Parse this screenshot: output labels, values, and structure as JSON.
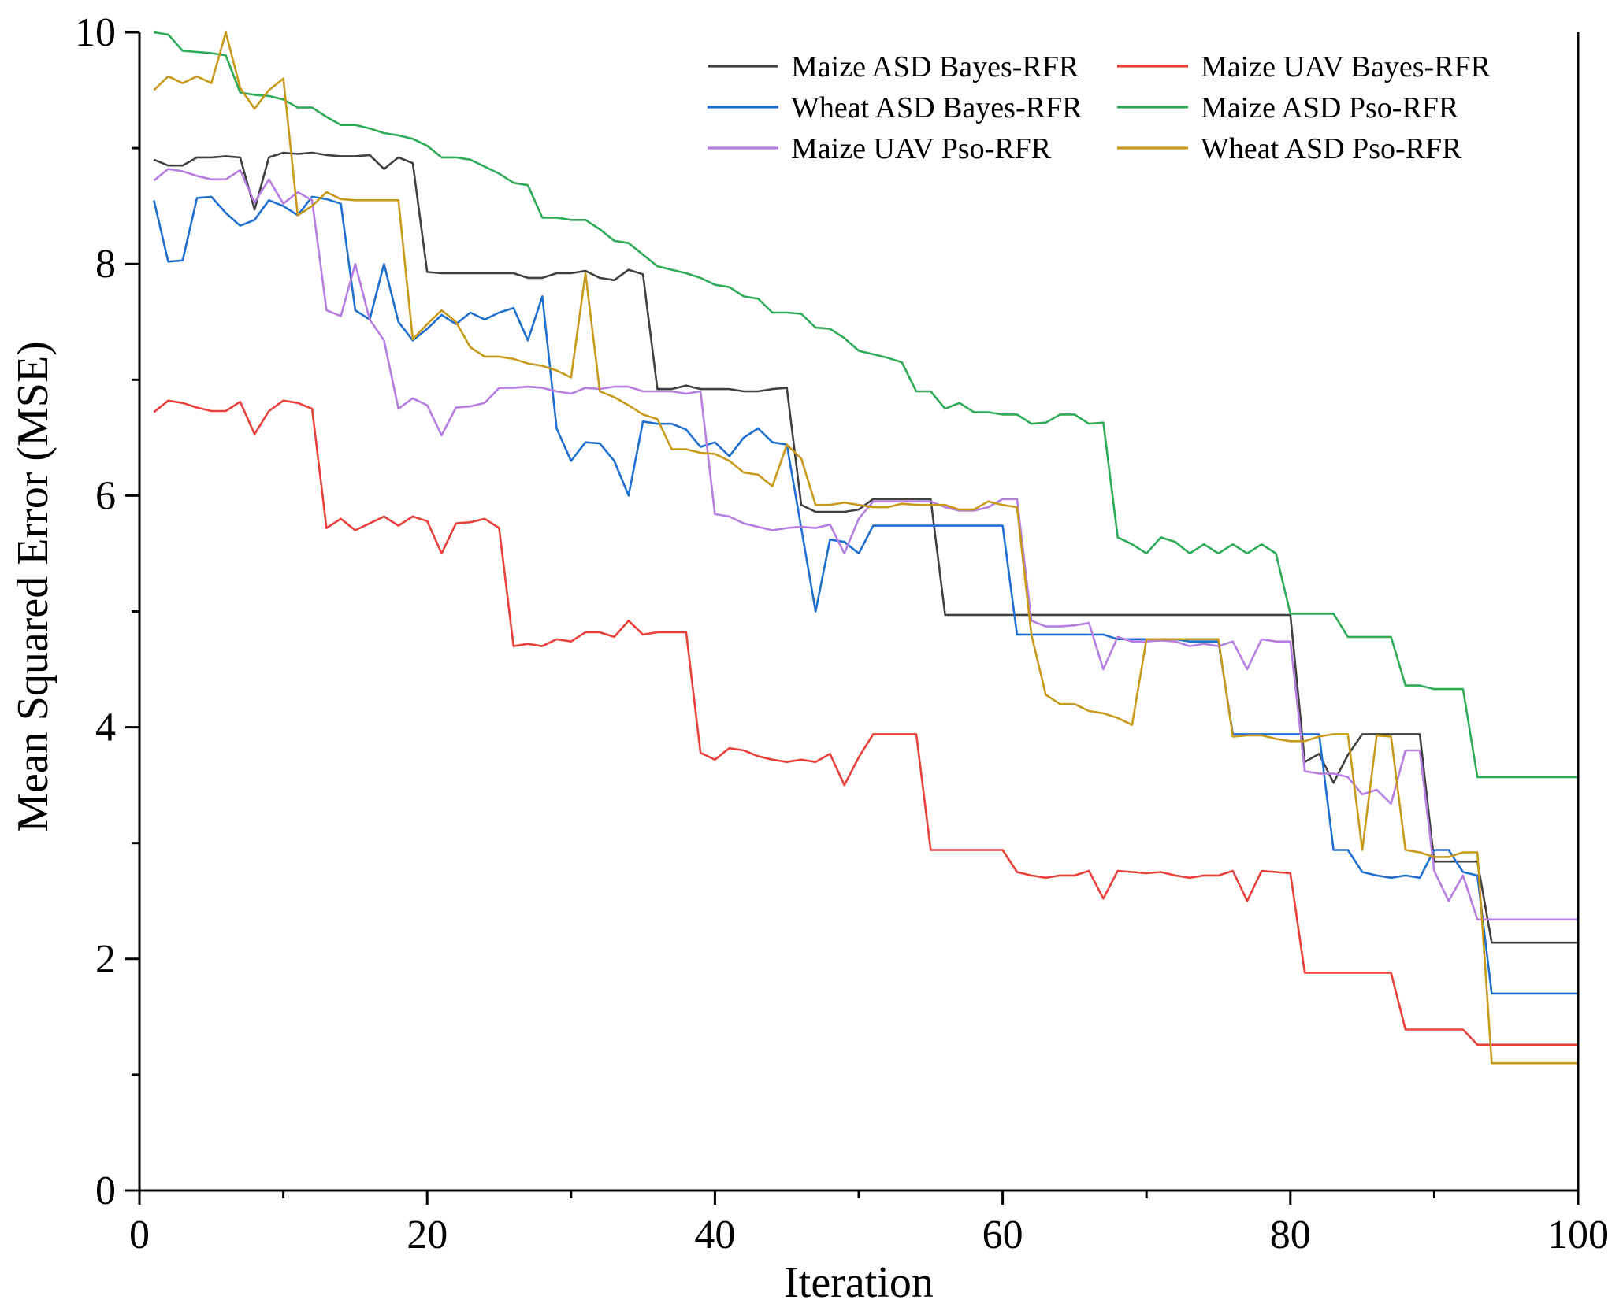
{
  "chart_data": {
    "type": "line",
    "xlabel": "Iteration",
    "ylabel": "Mean Squared Error (MSE)",
    "xlim": [
      0,
      100
    ],
    "ylim": [
      0,
      10
    ],
    "xticks": [
      0,
      20,
      40,
      60,
      80,
      100
    ],
    "yticks": [
      0,
      2,
      4,
      6,
      8,
      10
    ],
    "x_minor_ticks": [
      10,
      30,
      50,
      70,
      90
    ],
    "y_minor_ticks": [
      1,
      3,
      5,
      7,
      9
    ],
    "grid": false,
    "legend_position": "top-right",
    "x": [
      1,
      2,
      3,
      4,
      5,
      6,
      7,
      8,
      9,
      10,
      11,
      12,
      13,
      14,
      15,
      16,
      17,
      18,
      19,
      20,
      21,
      22,
      23,
      24,
      25,
      26,
      27,
      28,
      29,
      30,
      31,
      32,
      33,
      34,
      35,
      36,
      37,
      38,
      39,
      40,
      41,
      42,
      43,
      44,
      45,
      46,
      47,
      48,
      49,
      50,
      51,
      52,
      53,
      54,
      55,
      56,
      57,
      58,
      59,
      60,
      61,
      62,
      63,
      64,
      65,
      66,
      67,
      68,
      69,
      70,
      71,
      72,
      73,
      74,
      75,
      76,
      77,
      78,
      79,
      80,
      81,
      82,
      83,
      84,
      85,
      86,
      87,
      88,
      89,
      90,
      91,
      92,
      93,
      94,
      95,
      96,
      97,
      98,
      99,
      100
    ],
    "series": [
      {
        "name": "Maize ASD Bayes-RFR",
        "color": "#404040",
        "values": [
          8.9,
          8.85,
          8.85,
          8.92,
          8.92,
          8.93,
          8.92,
          8.47,
          8.92,
          8.96,
          8.95,
          8.96,
          8.94,
          8.93,
          8.93,
          8.94,
          8.82,
          8.92,
          8.87,
          7.93,
          7.92,
          7.92,
          7.92,
          7.92,
          7.92,
          7.92,
          7.88,
          7.88,
          7.92,
          7.92,
          7.94,
          7.88,
          7.86,
          7.95,
          7.91,
          6.92,
          6.92,
          6.95,
          6.92,
          6.92,
          6.92,
          6.9,
          6.9,
          6.92,
          6.93,
          5.92,
          5.86,
          5.86,
          5.86,
          5.88,
          5.97,
          5.97,
          5.97,
          5.97,
          5.97,
          4.97,
          4.97,
          4.97,
          4.97,
          4.97,
          4.97,
          4.97,
          4.97,
          4.97,
          4.97,
          4.97,
          4.97,
          4.97,
          4.97,
          4.97,
          4.97,
          4.97,
          4.97,
          4.97,
          4.97,
          4.97,
          4.97,
          4.97,
          4.97,
          4.97,
          3.7,
          3.77,
          3.52,
          3.76,
          3.94,
          3.94,
          3.94,
          3.94,
          3.94,
          2.84,
          2.84,
          2.84,
          2.84,
          2.14,
          2.14,
          2.14,
          2.14,
          2.14,
          2.14,
          2.14
        ]
      },
      {
        "name": "Maize UAV Bayes-RFR",
        "color": "#e8403a",
        "values": [
          6.72,
          6.82,
          6.8,
          6.76,
          6.73,
          6.73,
          6.81,
          6.53,
          6.73,
          6.82,
          6.8,
          6.75,
          5.72,
          5.8,
          5.7,
          5.76,
          5.82,
          5.74,
          5.82,
          5.78,
          5.5,
          5.76,
          5.77,
          5.8,
          5.72,
          4.7,
          4.72,
          4.7,
          4.76,
          4.74,
          4.82,
          4.82,
          4.78,
          4.92,
          4.8,
          4.82,
          4.82,
          4.82,
          3.78,
          3.72,
          3.82,
          3.8,
          3.75,
          3.72,
          3.7,
          3.72,
          3.7,
          3.77,
          3.5,
          3.74,
          3.94,
          3.94,
          3.94,
          3.94,
          2.94,
          2.94,
          2.94,
          2.94,
          2.94,
          2.94,
          2.75,
          2.72,
          2.7,
          2.72,
          2.72,
          2.76,
          2.52,
          2.76,
          2.75,
          2.74,
          2.75,
          2.72,
          2.7,
          2.72,
          2.72,
          2.76,
          2.5,
          2.76,
          2.75,
          2.74,
          1.88,
          1.88,
          1.88,
          1.88,
          1.88,
          1.88,
          1.88,
          1.39,
          1.39,
          1.39,
          1.39,
          1.39,
          1.26,
          1.26,
          1.26,
          1.26,
          1.26,
          1.26,
          1.26,
          1.26
        ]
      },
      {
        "name": "Wheat ASD Bayes-RFR",
        "color": "#1f6fcf",
        "values": [
          8.55,
          8.02,
          8.03,
          8.57,
          8.58,
          8.44,
          8.33,
          8.38,
          8.55,
          8.5,
          8.42,
          8.58,
          8.56,
          8.52,
          7.6,
          7.52,
          8.0,
          7.5,
          7.34,
          7.44,
          7.56,
          7.48,
          7.58,
          7.52,
          7.58,
          7.62,
          7.34,
          7.72,
          6.58,
          6.3,
          6.46,
          6.45,
          6.3,
          6.0,
          6.64,
          6.62,
          6.62,
          6.57,
          6.42,
          6.46,
          6.34,
          6.5,
          6.58,
          6.46,
          6.44,
          5.72,
          5.0,
          5.62,
          5.6,
          5.5,
          5.74,
          5.74,
          5.74,
          5.74,
          5.74,
          5.74,
          5.74,
          5.74,
          5.74,
          5.74,
          4.8,
          4.8,
          4.8,
          4.8,
          4.8,
          4.8,
          4.8,
          4.76,
          4.76,
          4.76,
          4.76,
          4.76,
          4.74,
          4.74,
          4.74,
          3.94,
          3.94,
          3.94,
          3.94,
          3.94,
          3.94,
          3.94,
          2.94,
          2.94,
          2.75,
          2.72,
          2.7,
          2.72,
          2.7,
          2.94,
          2.94,
          2.75,
          2.72,
          1.7,
          1.7,
          1.7,
          1.7,
          1.7,
          1.7,
          1.7
        ]
      },
      {
        "name": "Maize ASD Pso-RFR",
        "color": "#2eaa58",
        "values": [
          10.0,
          9.98,
          9.84,
          9.83,
          9.82,
          9.8,
          9.48,
          9.46,
          9.45,
          9.42,
          9.35,
          9.35,
          9.27,
          9.2,
          9.2,
          9.17,
          9.13,
          9.11,
          9.08,
          9.02,
          8.92,
          8.92,
          8.9,
          8.84,
          8.78,
          8.7,
          8.68,
          8.4,
          8.4,
          8.38,
          8.38,
          8.3,
          8.2,
          8.18,
          8.08,
          7.98,
          7.95,
          7.92,
          7.88,
          7.82,
          7.8,
          7.72,
          7.7,
          7.58,
          7.58,
          7.57,
          7.45,
          7.44,
          7.36,
          7.25,
          7.22,
          7.19,
          7.15,
          6.9,
          6.9,
          6.75,
          6.8,
          6.72,
          6.72,
          6.7,
          6.7,
          6.62,
          6.63,
          6.7,
          6.7,
          6.62,
          6.63,
          5.64,
          5.58,
          5.5,
          5.64,
          5.6,
          5.5,
          5.58,
          5.5,
          5.58,
          5.5,
          5.58,
          5.5,
          4.98,
          4.98,
          4.98,
          4.98,
          4.78,
          4.78,
          4.78,
          4.78,
          4.36,
          4.36,
          4.33,
          4.33,
          4.33,
          3.57,
          3.57,
          3.57,
          3.57,
          3.57,
          3.57,
          3.57,
          3.57
        ]
      },
      {
        "name": "Maize UAV Pso-RFR",
        "color": "#b57ee0",
        "values": [
          8.72,
          8.82,
          8.8,
          8.76,
          8.73,
          8.73,
          8.81,
          8.53,
          8.73,
          8.52,
          8.62,
          8.55,
          7.6,
          7.55,
          8.0,
          7.52,
          7.34,
          6.75,
          6.84,
          6.78,
          6.52,
          6.76,
          6.77,
          6.8,
          6.93,
          6.93,
          6.94,
          6.93,
          6.9,
          6.88,
          6.93,
          6.92,
          6.94,
          6.94,
          6.9,
          6.9,
          6.9,
          6.88,
          6.9,
          5.84,
          5.82,
          5.76,
          5.73,
          5.7,
          5.72,
          5.73,
          5.72,
          5.75,
          5.5,
          5.8,
          5.95,
          5.95,
          5.95,
          5.95,
          5.95,
          5.9,
          5.87,
          5.87,
          5.9,
          5.97,
          5.97,
          4.92,
          4.87,
          4.87,
          4.88,
          4.9,
          4.5,
          4.78,
          4.74,
          4.74,
          4.75,
          4.74,
          4.7,
          4.72,
          4.7,
          4.74,
          4.5,
          4.76,
          4.74,
          4.74,
          3.62,
          3.6,
          3.6,
          3.57,
          3.42,
          3.46,
          3.34,
          3.8,
          3.8,
          2.76,
          2.5,
          2.72,
          2.34,
          2.34,
          2.34,
          2.34,
          2.34,
          2.34,
          2.34,
          2.34
        ]
      },
      {
        "name": "Wheat ASD Pso-RFR",
        "color": "#c89a1b",
        "values": [
          9.5,
          9.62,
          9.56,
          9.62,
          9.56,
          10.0,
          9.52,
          9.34,
          9.5,
          9.6,
          8.42,
          8.5,
          8.62,
          8.56,
          8.55,
          8.55,
          8.55,
          8.55,
          7.35,
          7.48,
          7.6,
          7.5,
          7.28,
          7.2,
          7.2,
          7.18,
          7.14,
          7.12,
          7.08,
          7.02,
          7.92,
          6.9,
          6.85,
          6.78,
          6.7,
          6.66,
          6.4,
          6.4,
          6.37,
          6.36,
          6.3,
          6.2,
          6.18,
          6.08,
          6.44,
          6.32,
          5.92,
          5.92,
          5.94,
          5.92,
          5.9,
          5.9,
          5.93,
          5.92,
          5.92,
          5.92,
          5.88,
          5.88,
          5.95,
          5.92,
          5.9,
          4.8,
          4.28,
          4.2,
          4.2,
          4.14,
          4.12,
          4.08,
          4.02,
          4.76,
          4.76,
          4.76,
          4.76,
          4.76,
          4.76,
          3.92,
          3.93,
          3.93,
          3.9,
          3.88,
          3.88,
          3.92,
          3.94,
          3.94,
          2.94,
          3.93,
          3.92,
          2.94,
          2.92,
          2.88,
          2.88,
          2.92,
          2.92,
          1.1,
          1.1,
          1.1,
          1.1,
          1.1,
          1.1,
          1.1
        ]
      }
    ]
  }
}
